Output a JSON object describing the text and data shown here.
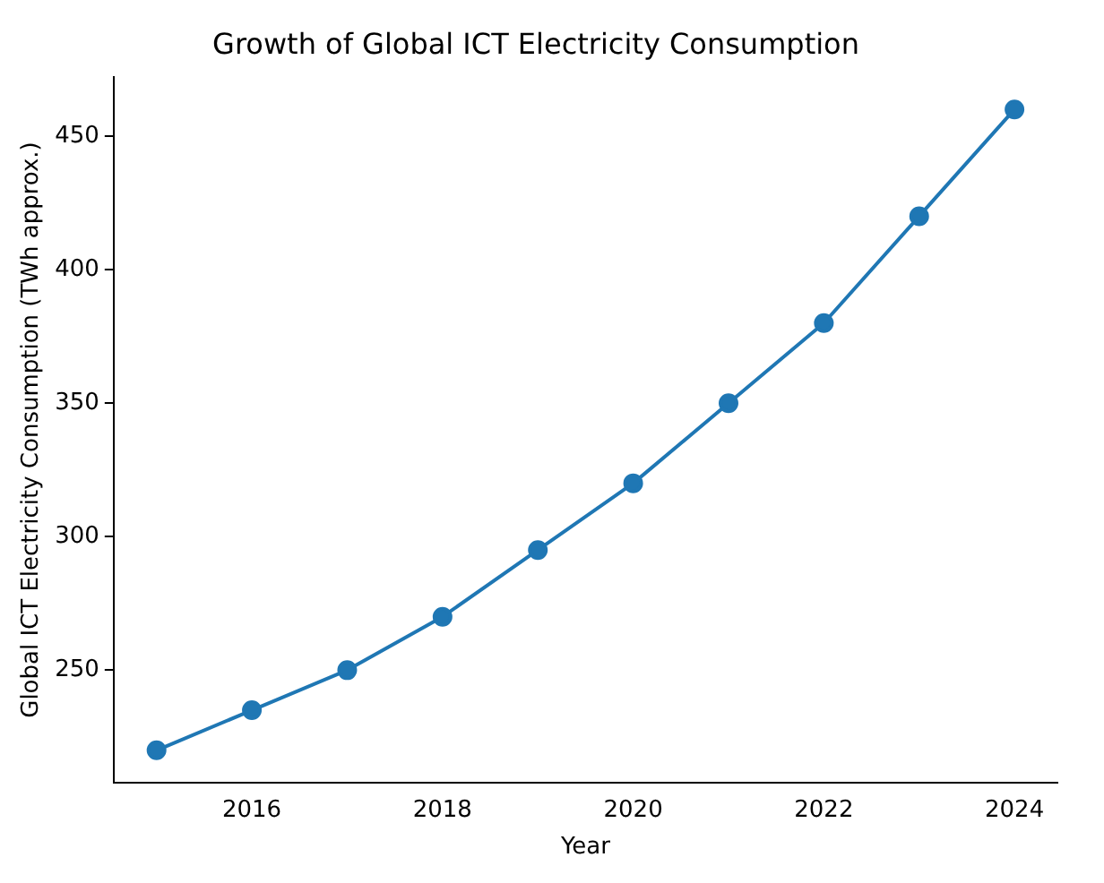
{
  "chart_data": {
    "type": "line",
    "title": "Growth of Global ICT Electricity Consumption",
    "xlabel": "Year",
    "ylabel": "Global ICT Electricity Consumption (TWh approx.)",
    "x": [
      2015,
      2016,
      2017,
      2018,
      2019,
      2020,
      2021,
      2022,
      2023,
      2024
    ],
    "series": [
      {
        "color": "#1f77b4",
        "values": [
          220,
          235,
          250,
          270,
          295,
          320,
          350,
          380,
          420,
          460
        ]
      }
    ],
    "xlim": [
      2014.55,
      2024.45
    ],
    "xticks": [
      2016,
      2018,
      2020,
      2022,
      2024
    ],
    "ylim": [
      208,
      472
    ],
    "yticks": [
      250,
      300,
      350,
      400,
      450
    ],
    "grid": false,
    "legend": false,
    "marker": "circle",
    "line_style": "solid"
  }
}
